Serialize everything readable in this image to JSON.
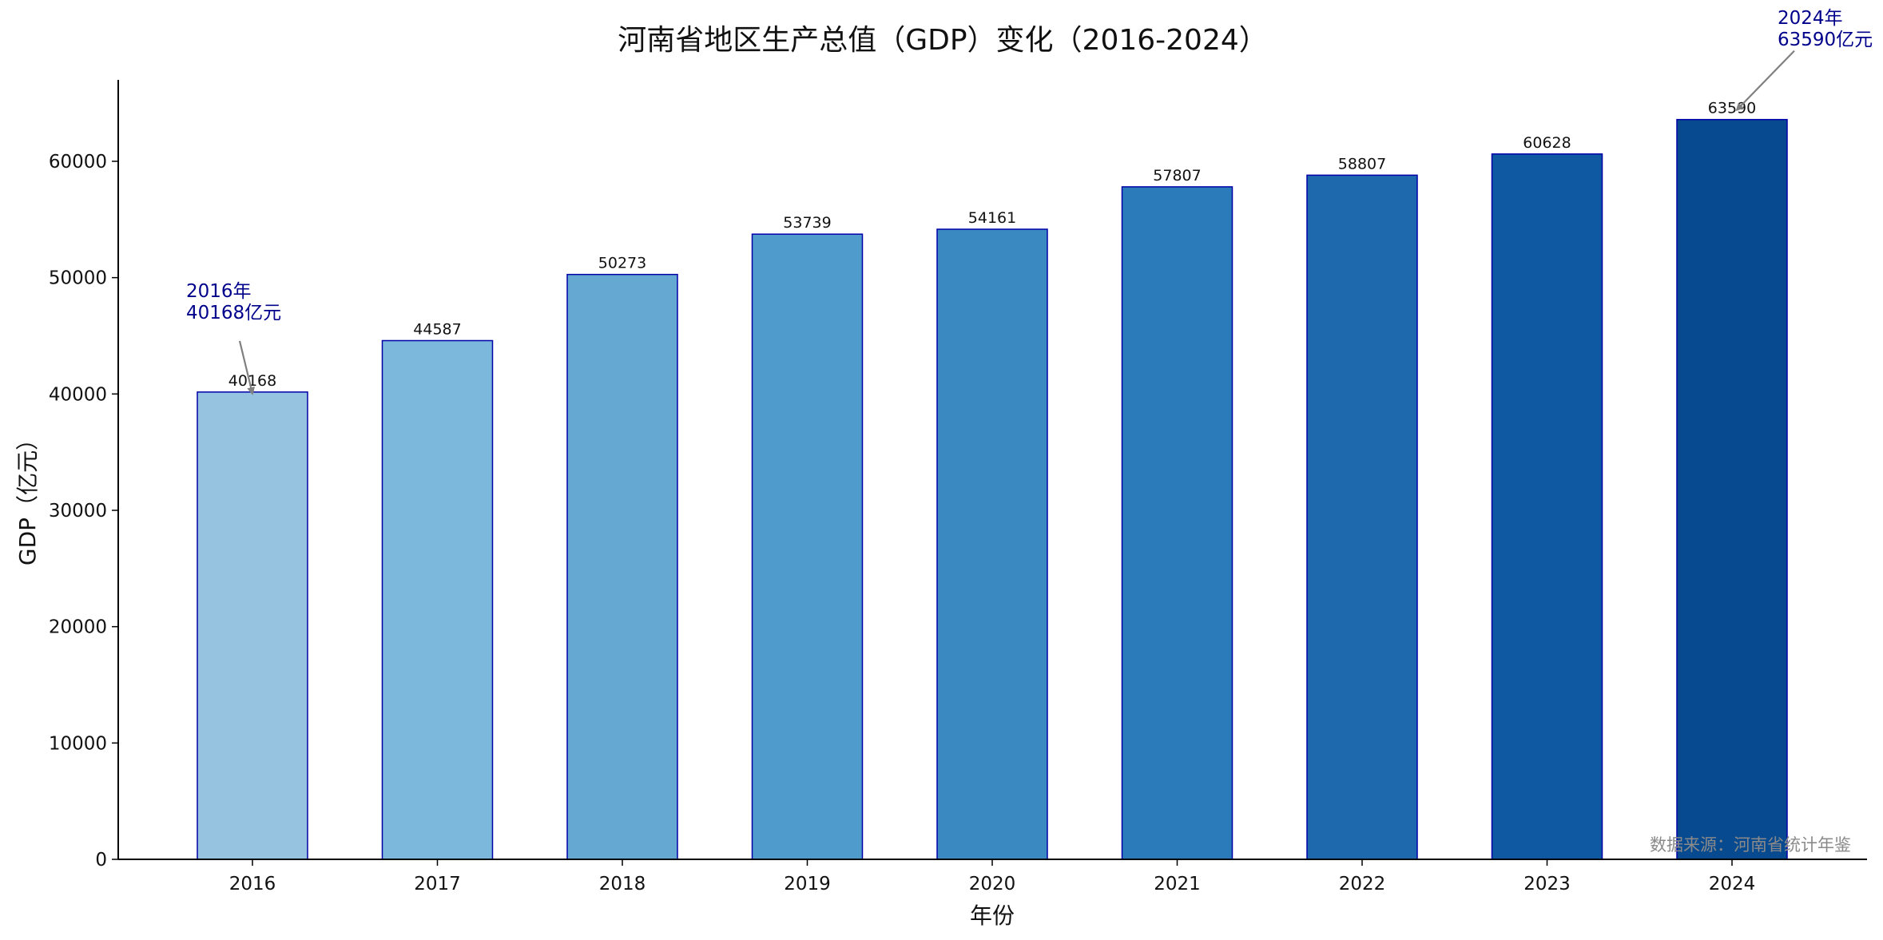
{
  "chart_data": {
    "type": "bar",
    "title": "河南省地区生产总值（GDP）变化（2016-2024）",
    "xlabel": "年份",
    "ylabel": "GDP（亿元）",
    "ylim": [
      0,
      67000
    ],
    "yticks": [
      0,
      10000,
      20000,
      30000,
      40000,
      50000,
      60000
    ],
    "categories": [
      "2016",
      "2017",
      "2018",
      "2019",
      "2020",
      "2021",
      "2022",
      "2023",
      "2024"
    ],
    "values": [
      40168,
      44587,
      50273,
      53739,
      54161,
      57807,
      58807,
      60628,
      63590
    ],
    "data_labels": [
      "40168",
      "44587",
      "50273",
      "53739",
      "54161",
      "57807",
      "58807",
      "60628",
      "63590"
    ],
    "grid": false,
    "bar_colors": [
      "#95c3e0",
      "#7cb7dc",
      "#65a9d3",
      "#4f9bcb",
      "#3a89c1",
      "#2b7bba",
      "#1e69ae",
      "#0f58a2",
      "#084a8f"
    ],
    "bar_edge_color": "#0000a8",
    "annotations": [
      {
        "category": "2016",
        "value": 40168,
        "lines": [
          "2016年",
          "40168亿元"
        ]
      },
      {
        "category": "2024",
        "value": 63590,
        "lines": [
          "2024年",
          "63590亿元"
        ]
      }
    ],
    "source_note": "数据来源：河南省统计年鉴"
  }
}
